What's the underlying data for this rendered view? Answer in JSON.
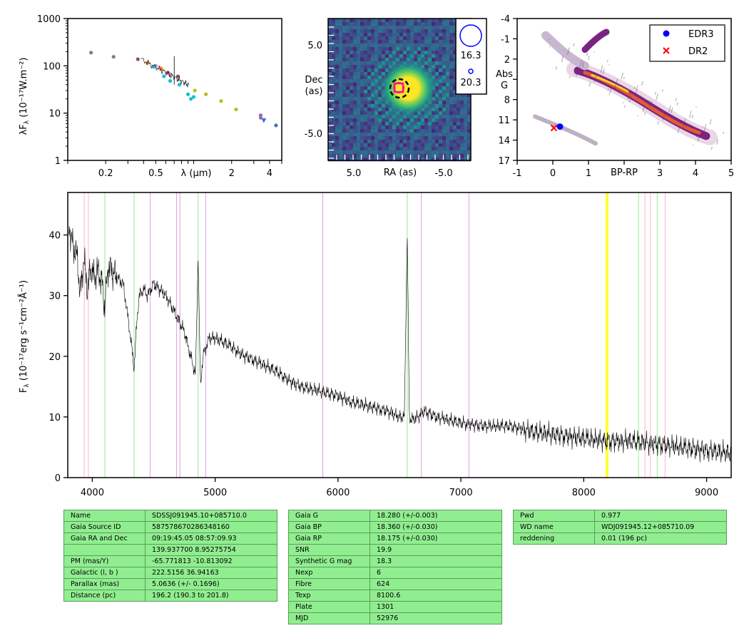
{
  "sed": {
    "ylabel": "λF",
    "ylabel_sub": "λ",
    "ylabel_units": " (10⁻¹⁷W.m⁻²)",
    "xlabel": "λ (μm)",
    "yticks": [
      "1",
      "10",
      "100",
      "1000"
    ],
    "xticks": [
      "0.2",
      "0.5",
      "2",
      "4"
    ]
  },
  "image": {
    "xlabel": "RA (as)",
    "ylabel_line1": "Dec",
    "ylabel_line2": "(as)",
    "xticks": [
      "5.0",
      "-5.0"
    ],
    "yticks": [
      "5.0",
      "-5.0"
    ],
    "legend": [
      "16.3",
      "20.3"
    ]
  },
  "hr": {
    "xlabel": "BP-RP",
    "ylabel": [
      "Abs",
      "G"
    ],
    "xticks": [
      "-1",
      "0",
      "1",
      "3",
      "4",
      "5"
    ],
    "yticks": [
      "-4",
      "-1",
      "2",
      "5",
      "8",
      "11",
      "14",
      "17"
    ],
    "legend": [
      "EDR3",
      "DR2"
    ],
    "legend_colors": [
      "#0000ff",
      "#ff0000"
    ]
  },
  "chart_data": [
    {
      "type": "scatter",
      "panel": "sed",
      "xlabel": "λ (μm)",
      "ylabel": "λFλ (10⁻¹⁷W.m⁻²)",
      "xscale": "log",
      "yscale": "log",
      "xlim": [
        0.1,
        5
      ],
      "ylim": [
        1,
        1000
      ],
      "series": [
        {
          "color": "#7f7f7f",
          "x": [
            0.153,
            0.231
          ],
          "y": [
            190,
            155
          ]
        },
        {
          "color": "#8c564b",
          "x": [
            0.36,
            0.62,
            0.75
          ],
          "y": [
            138,
            72,
            60
          ]
        },
        {
          "color": "#ff7f0e",
          "x": [
            0.43,
            0.55
          ],
          "y": [
            115,
            88
          ]
        },
        {
          "color": "#e377c2",
          "x": [
            0.5,
            0.64
          ],
          "y": [
            100,
            68
          ]
        },
        {
          "color": "#17becf",
          "x": [
            0.48,
            0.58,
            0.65,
            0.77,
            0.9,
            0.95,
            1.0
          ],
          "y": [
            95,
            60,
            48,
            40,
            25,
            20,
            22
          ]
        },
        {
          "color": "#bcbd22",
          "x": [
            1.02,
            1.25,
            1.65,
            2.17
          ],
          "y": [
            30,
            25,
            18,
            12
          ]
        },
        {
          "color": "#9467bd",
          "x": [
            3.4,
            3.4
          ],
          "y": [
            9,
            8
          ]
        },
        {
          "color": "#4472c4",
          "x": [
            3.6,
            4.5
          ],
          "y": [
            7,
            5.5
          ]
        }
      ]
    },
    {
      "type": "scatter",
      "panel": "hr",
      "xlabel": "BP-RP",
      "ylabel": "Abs G",
      "xlim": [
        -1,
        5
      ],
      "ylim": [
        17,
        -4
      ],
      "series": [
        {
          "name": "EDR3",
          "x": [
            0.2
          ],
          "y": [
            12.0
          ]
        },
        {
          "name": "DR2",
          "x": [
            0.03
          ],
          "y": [
            12.2
          ]
        }
      ]
    },
    {
      "type": "line",
      "panel": "spectrum",
      "xlabel": "",
      "ylabel": "Fλ (10⁻¹⁷erg s⁻¹cm⁻²Å⁻¹)",
      "xlim": [
        3800,
        9200
      ],
      "ylim": [
        0,
        47
      ],
      "x": [
        3810,
        3830,
        3850,
        3880,
        3900,
        3930,
        3960,
        3990,
        4010,
        4050,
        4080,
        4100,
        4130,
        4160,
        4200,
        4250,
        4300,
        4340,
        4360,
        4380,
        4420,
        4450,
        4500,
        4550,
        4600,
        4650,
        4700,
        4750,
        4800,
        4840,
        4861,
        4880,
        4900,
        4950,
        5000,
        5100,
        5200,
        5300,
        5400,
        5500,
        5600,
        5700,
        5800,
        5900,
        6000,
        6100,
        6200,
        6300,
        6400,
        6500,
        6540,
        6563,
        6580,
        6600,
        6650,
        6700,
        6800,
        6900,
        7000,
        7200,
        7400,
        7600,
        7800,
        8000,
        8200,
        8400,
        8600,
        8800,
        9000,
        9200
      ],
      "y": [
        42,
        39,
        38,
        36,
        30,
        36,
        31,
        35,
        33,
        34,
        32,
        28,
        35,
        34,
        33,
        32,
        25,
        18,
        25,
        30,
        31,
        30,
        32,
        31,
        30,
        28,
        26,
        24,
        20,
        17,
        37,
        15,
        20,
        23,
        23,
        22,
        20.5,
        19.5,
        18.5,
        17.5,
        16,
        15,
        14.5,
        14,
        13.5,
        12.5,
        12,
        11.5,
        11,
        10,
        10,
        41,
        10,
        9.5,
        10,
        11,
        10,
        9.5,
        9,
        8.5,
        8.5,
        7.5,
        7,
        6.5,
        6,
        6,
        5.5,
        5,
        4.5,
        4
      ]
    }
  ],
  "spectrum": {
    "ylabel": "F",
    "ylabel_sub": "λ",
    "ylabel_units": " (10⁻¹⁷erg s⁻¹cm⁻²Å⁻¹)",
    "xticks": [
      "4000",
      "5000",
      "6000",
      "7000",
      "8000",
      "9000"
    ],
    "yticks": [
      "0",
      "10",
      "20",
      "30",
      "40"
    ]
  },
  "table1": [
    [
      "Name",
      "SDSSJ091945.10+085710.0"
    ],
    [
      "Gaia Source ID",
      "587578670286348160"
    ],
    [
      "Gaia RA and Dec",
      "09:19:45.05     08:57:09.93"
    ],
    [
      "",
      "139.937700    8.95275754"
    ],
    [
      "PM (mas/Y)",
      "-65.771813    -10.813092"
    ],
    [
      "Galactic (l, b )",
      "222.5156    36.94163"
    ],
    [
      "Parallax (mas)",
      "5.0636 (+/- 0.1696)"
    ],
    [
      "Distance (pc)",
      "196.2 (190.3 to 201.8)"
    ]
  ],
  "table2": [
    [
      "Gaia G",
      "18.280 (+/-0.003)"
    ],
    [
      "Gaia BP",
      "18.360 (+/-0.030)"
    ],
    [
      "Gaia RP",
      "18.175 (+/-0.030)"
    ],
    [
      "SNR",
      "19.9"
    ],
    [
      "Synthetic G mag",
      "18.3"
    ],
    [
      "Nexp",
      "6"
    ],
    [
      "Fibre",
      "624"
    ],
    [
      "Texp",
      "8100.6"
    ],
    [
      "Plate",
      "1301"
    ],
    [
      "MJD",
      "52976"
    ]
  ],
  "table3": [
    [
      "Pwd",
      "0.977"
    ],
    [
      "WD name",
      "WDJ091945.12+085710.09"
    ],
    [
      "reddening",
      "0.01 (196 pc)"
    ]
  ]
}
